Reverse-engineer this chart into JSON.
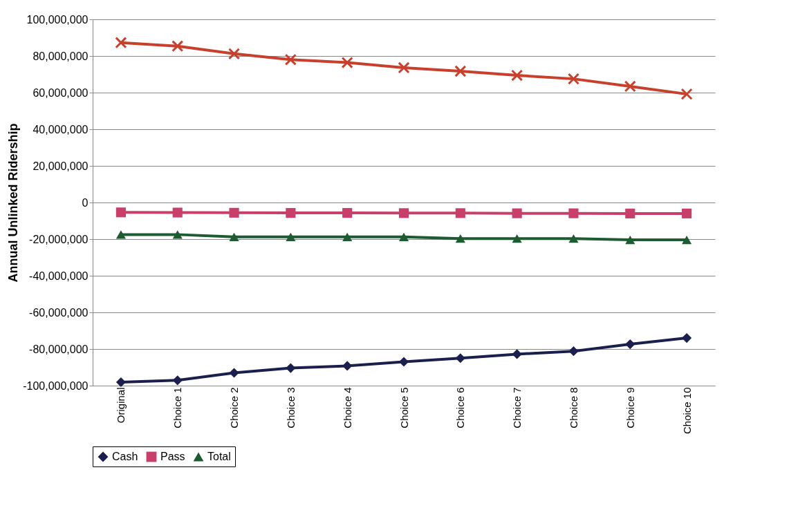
{
  "chart_data": {
    "type": "line",
    "ylabel": "Annual Unlinked Ridership",
    "categories": [
      "Original",
      "Choice 1",
      "Choice 2",
      "Choice 3",
      "Choice 4",
      "Choice 5",
      "Choice 6",
      "Choice 7",
      "Choice 8",
      "Choice 9",
      "Choice 10"
    ],
    "series": [
      {
        "name": "Cash",
        "color": "#1b1f4d",
        "marker": "diamond",
        "values": [
          -98100000,
          -97100000,
          -93000000,
          -90400000,
          -89200000,
          -87000000,
          -85000000,
          -82800000,
          -81200000,
          -77400000,
          -74000000
        ]
      },
      {
        "color": "#c8402c",
        "marker": "cross",
        "values": [
          87300000,
          85400000,
          81200000,
          78000000,
          76400000,
          73600000,
          71700000,
          69400000,
          67500000,
          63400000,
          59200000
        ]
      },
      {
        "name": "Pass",
        "color": "#c8406a",
        "marker": "square",
        "values": [
          -5400000,
          -5500000,
          -5600000,
          -5700000,
          -5700000,
          -5800000,
          -5800000,
          -5900000,
          -5900000,
          -6000000,
          -6000000
        ]
      },
      {
        "name": "Total",
        "color": "#1e5a32",
        "marker": "triangle",
        "values": [
          -17500000,
          -17500000,
          -18800000,
          -18800000,
          -18800000,
          -18800000,
          -19700000,
          -19700000,
          -19700000,
          -20400000,
          -20400000
        ]
      }
    ],
    "ylim": [
      -100000000,
      100000000
    ],
    "yticks": [
      {
        "value": -100000000,
        "label": "-100,000,000"
      },
      {
        "value": -80000000,
        "label": "-80,000,000"
      },
      {
        "value": -60000000,
        "label": "-60,000,000"
      },
      {
        "value": -40000000,
        "label": "-40,000,000"
      },
      {
        "value": -20000000,
        "label": "-20,000,000"
      },
      0,
      {
        "value": 20000000,
        "label": "20,000,000"
      },
      {
        "value": 40000000,
        "label": "40,000,000"
      },
      {
        "value": 60000000,
        "label": "60,000,000"
      },
      {
        "value": 80000000,
        "label": "80,000,000"
      },
      {
        "value": 100000000,
        "label": "100,000,000"
      }
    ],
    "grid": "y",
    "legend": "bottom"
  }
}
